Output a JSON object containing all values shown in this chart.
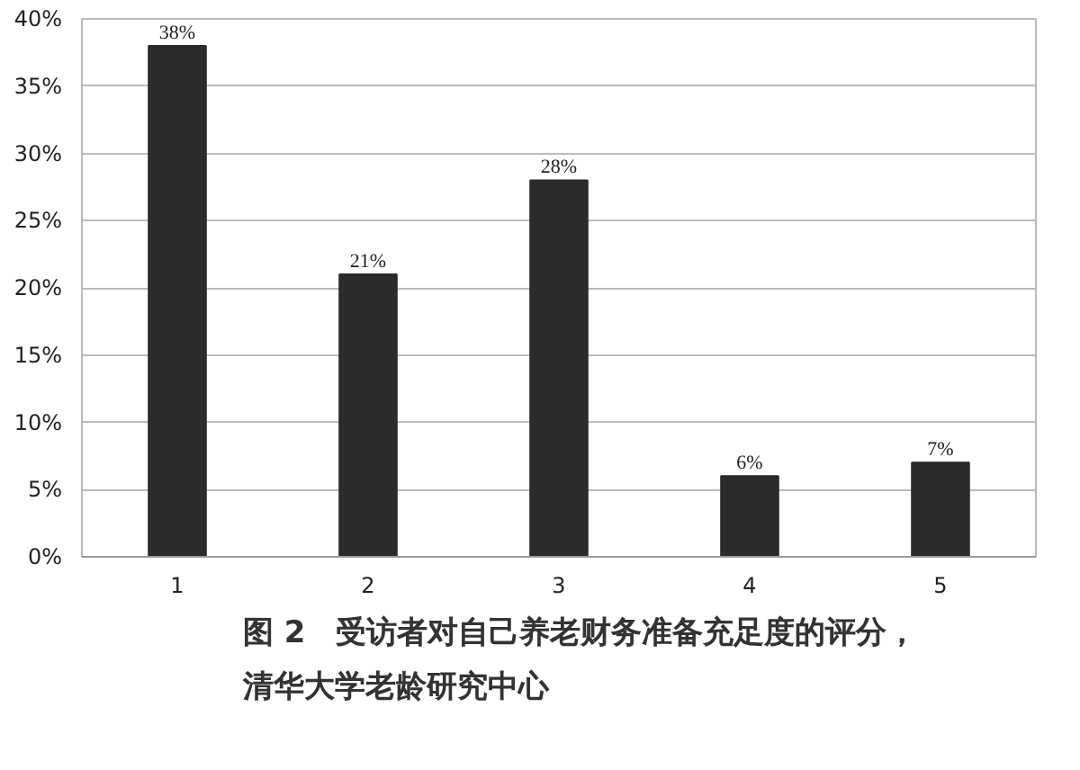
{
  "chart_data": {
    "type": "bar",
    "title": "图 2　受访者对自己养老财务准备充足度的评分，",
    "subtitle": "清华大学老龄研究中心",
    "categories": [
      "1",
      "2",
      "3",
      "4",
      "5"
    ],
    "values": [
      38,
      21,
      28,
      6,
      7
    ],
    "color": "#2b2b2b",
    "ylim": [
      0,
      40
    ],
    "yticks": [
      {
        "value": 0,
        "label": "0%"
      },
      {
        "value": 5,
        "label": "5%"
      },
      {
        "value": 10,
        "label": "10%"
      },
      {
        "value": 15,
        "label": "15%"
      },
      {
        "value": 20,
        "label": "20%"
      },
      {
        "value": 25,
        "label": "25%"
      },
      {
        "value": 30,
        "label": "30%"
      },
      {
        "value": 35,
        "label": "35%"
      },
      {
        "value": 40,
        "label": "40%"
      }
    ],
    "value_labels": [
      "38%",
      "21%",
      "28%",
      "6%",
      "7%"
    ],
    "grid": "y"
  }
}
